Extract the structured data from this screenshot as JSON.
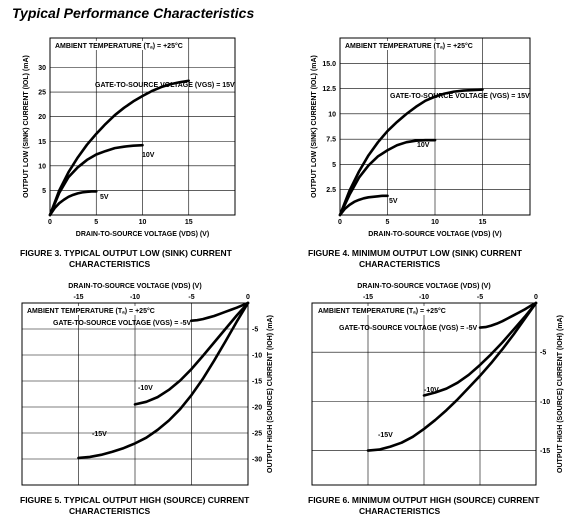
{
  "page_title": "Typical Performance Characteristics",
  "chart_data": [
    {
      "id": "fig3",
      "type": "line",
      "title": "",
      "caption": [
        "FIGURE 3.  TYPICAL OUTPUT LOW (SINK) CURRENT",
        "CHARACTERISTICS"
      ],
      "xlabel": "DRAIN-TO-SOURCE VOLTAGE (VDS) (V)",
      "ylabel": "OUTPUT LOW (SINK) CURRENT (IOL) (mA)",
      "annotations": [
        "AMBIENT TEMPERATURE (Tₐ) = +25°C",
        "GATE-TO-SOURCE VOLTAGE (VGS) = 15V"
      ],
      "xlim": [
        0,
        20
      ],
      "ylim": [
        0,
        36
      ],
      "xticks": [
        0,
        5,
        10,
        15
      ],
      "xtick_labels": [
        "0",
        "5",
        "10",
        "15"
      ],
      "yticks": [
        5,
        10,
        15,
        20,
        25,
        30
      ],
      "ytick_labels": [
        "5",
        "10",
        "15",
        "20",
        "25",
        "30"
      ],
      "grid": true,
      "series": [
        {
          "name": "15V",
          "x": [
            0,
            1,
            2,
            3,
            4,
            5,
            6,
            7,
            8,
            9,
            10,
            11,
            12,
            13,
            14,
            15
          ],
          "y": [
            0,
            5,
            8.7,
            11.7,
            14.3,
            16.5,
            18.5,
            20.3,
            21.8,
            23.1,
            24.2,
            25.2,
            26.0,
            26.6,
            27.0,
            27.3
          ]
        },
        {
          "name": "10V",
          "x": [
            0,
            1,
            2,
            3,
            4,
            5,
            6,
            7,
            8,
            9,
            10
          ],
          "y": [
            0,
            4.5,
            7.7,
            9.7,
            11.2,
            12.3,
            13.0,
            13.6,
            13.9,
            14.1,
            14.2
          ]
        },
        {
          "name": "5V",
          "x": [
            0,
            0.5,
            1,
            1.5,
            2,
            2.5,
            3,
            3.5,
            4,
            4.5,
            5
          ],
          "y": [
            0,
            1.4,
            2.4,
            3.1,
            3.7,
            4.1,
            4.4,
            4.6,
            4.7,
            4.8,
            4.8
          ]
        }
      ],
      "series_labels": [
        "15V",
        "10V",
        "5V"
      ]
    },
    {
      "id": "fig4",
      "type": "line",
      "title": "",
      "caption": [
        "FIGURE 4.  MINIMUM OUTPUT LOW (SINK) CURRENT",
        "CHARACTERISTICS"
      ],
      "xlabel": "DRAIN-TO-SOURCE VOLTAGE (VDS) (V)",
      "ylabel": "OUTPUT LOW (SINK) CURRENT (IOL) (mA)",
      "annotations": [
        "AMBIENT TEMPERATURE (Tₐ) = +25°C",
        "GATE-TO-SOURCE VOLTAGE (VGS) = 15V"
      ],
      "xlim": [
        0,
        20
      ],
      "ylim": [
        0,
        17.5
      ],
      "xticks": [
        0,
        5,
        10,
        15
      ],
      "xtick_labels": [
        "0",
        "5",
        "10",
        "15"
      ],
      "yticks": [
        2.5,
        5,
        7.5,
        10,
        12.5,
        15
      ],
      "ytick_labels": [
        "2.5",
        "5",
        "7.5",
        "10",
        "12.5",
        "15.0"
      ],
      "grid": true,
      "series": [
        {
          "name": "15V",
          "x": [
            0,
            1,
            2,
            3,
            4,
            5,
            6,
            7,
            8,
            9,
            10,
            11,
            12,
            13,
            14,
            15
          ],
          "y": [
            0,
            2.4,
            4.3,
            5.9,
            7.2,
            8.3,
            9.2,
            10.0,
            10.7,
            11.3,
            11.7,
            12.0,
            12.2,
            12.3,
            12.35,
            12.4
          ]
        },
        {
          "name": "10V",
          "x": [
            0,
            1,
            2,
            3,
            4,
            5,
            6,
            7,
            8,
            9,
            10
          ],
          "y": [
            0,
            2.0,
            3.7,
            4.9,
            5.8,
            6.4,
            6.9,
            7.2,
            7.35,
            7.4,
            7.4
          ]
        },
        {
          "name": "5V",
          "x": [
            0,
            0.5,
            1,
            1.5,
            2,
            2.5,
            3,
            3.5,
            4,
            4.5,
            5
          ],
          "y": [
            0,
            0.6,
            1.0,
            1.3,
            1.5,
            1.65,
            1.75,
            1.8,
            1.85,
            1.9,
            1.9
          ]
        }
      ],
      "series_labels": [
        "15V",
        "10V",
        "5V"
      ]
    },
    {
      "id": "fig5",
      "type": "line",
      "title": "",
      "caption": [
        "FIGURE 5.  TYPICAL OUTPUT HIGH (SOURCE) CURRENT",
        "CHARACTERISTICS"
      ],
      "xlabel": "DRAIN-TO-SOURCE VOLTAGE (VDS) (V)",
      "ylabel": "OUTPUT HIGH (SOURCE) CURRENT (IOH) (mA)",
      "annotations": [
        "AMBIENT TEMPERATURE (Tₐ) = +25°C",
        "GATE-TO-SOURCE VOLTAGE (VGS) = -5V"
      ],
      "xlim": [
        -20,
        0
      ],
      "ylim": [
        -35,
        0
      ],
      "xticks": [
        -15,
        -10,
        -5,
        0
      ],
      "xtick_labels": [
        "-15",
        "-10",
        "-5",
        "0"
      ],
      "yticks": [
        -5,
        -10,
        -15,
        -20,
        -25,
        -30
      ],
      "ytick_labels": [
        "-5",
        "-10",
        "-15",
        "-20",
        "-25",
        "-30"
      ],
      "grid": true,
      "series": [
        {
          "name": "-15V",
          "x": [
            -15,
            -14,
            -13,
            -12,
            -11,
            -10,
            -9,
            -8,
            -7,
            -6,
            -5,
            -4,
            -3,
            -2,
            -1,
            0
          ],
          "y": [
            -29.8,
            -29.6,
            -29.2,
            -28.6,
            -27.9,
            -27.0,
            -25.9,
            -24.4,
            -22.6,
            -20.4,
            -17.7,
            -14.6,
            -11.1,
            -7.4,
            -3.6,
            0
          ]
        },
        {
          "name": "-10V",
          "x": [
            -10,
            -9,
            -8,
            -7,
            -6,
            -5,
            -4,
            -3,
            -2,
            -1,
            0
          ],
          "y": [
            -19.5,
            -19.0,
            -18.1,
            -16.7,
            -14.9,
            -12.7,
            -10.2,
            -7.6,
            -5.0,
            -2.4,
            0
          ]
        },
        {
          "name": "-5V",
          "x": [
            -5,
            -4.5,
            -4,
            -3.5,
            -3,
            -2.5,
            -2,
            -1.5,
            -1,
            -0.5,
            0
          ],
          "y": [
            -3.4,
            -3.3,
            -3.1,
            -2.8,
            -2.5,
            -2.1,
            -1.7,
            -1.3,
            -0.9,
            -0.45,
            0
          ]
        }
      ],
      "series_labels": [
        "-15V",
        "-10V"
      ]
    },
    {
      "id": "fig6",
      "type": "line",
      "title": "",
      "caption": [
        "FIGURE 6.  MINIMUM OUTPUT HIGH (SOURCE) CURRENT",
        "CHARACTERISTICS"
      ],
      "xlabel": "DRAIN-TO-SOURCE VOLTAGE (VDS) (V)",
      "ylabel": "OUTPUT HIGH (SOURCE) CURRENT (IOH) (mA)",
      "annotations": [
        "AMBIENT TEMPERATURE (Tₐ) = +25°C",
        "GATE-TO-SOURCE VOLTAGE (VGS) = -5V"
      ],
      "xlim": [
        -20,
        0
      ],
      "ylim": [
        -18.5,
        0
      ],
      "xticks": [
        -15,
        -10,
        -5,
        0
      ],
      "xtick_labels": [
        "-15",
        "-10",
        "-5",
        "0"
      ],
      "yticks": [
        -5,
        -10,
        -15
      ],
      "ytick_labels": [
        "-5",
        "-10",
        "-15"
      ],
      "grid": true,
      "series": [
        {
          "name": "-15V",
          "x": [
            -15,
            -14,
            -13,
            -12,
            -11,
            -10,
            -9,
            -8,
            -7,
            -6,
            -5,
            -4,
            -3,
            -2,
            -1,
            0
          ],
          "y": [
            -15.0,
            -14.9,
            -14.6,
            -14.2,
            -13.6,
            -12.8,
            -11.9,
            -10.9,
            -9.8,
            -8.6,
            -7.4,
            -6.1,
            -4.7,
            -3.2,
            -1.6,
            0
          ]
        },
        {
          "name": "-10V",
          "x": [
            -10,
            -9,
            -8,
            -7,
            -6,
            -5,
            -4,
            -3,
            -2,
            -1,
            0
          ],
          "y": [
            -9.4,
            -9.1,
            -8.7,
            -8.1,
            -7.3,
            -6.3,
            -5.2,
            -4.0,
            -2.7,
            -1.4,
            0
          ]
        },
        {
          "name": "-5V",
          "x": [
            -5,
            -4.5,
            -4,
            -3.5,
            -3,
            -2.5,
            -2,
            -1.5,
            -1,
            -0.5,
            0
          ],
          "y": [
            -2.5,
            -2.45,
            -2.3,
            -2.1,
            -1.85,
            -1.55,
            -1.25,
            -0.95,
            -0.65,
            -0.3,
            0
          ]
        }
      ],
      "series_labels": [
        "-15V",
        "-10V"
      ]
    }
  ]
}
